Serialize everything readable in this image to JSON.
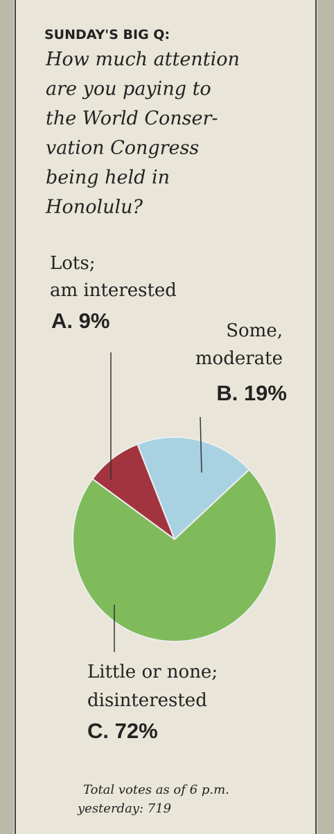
{
  "chart_data": {
    "type": "pie",
    "title": "SUNDAY'S BIG Q:",
    "subtitle": [
      "How much attention",
      "are you paying to",
      "the World Conser-",
      "vation Congress",
      "being held in",
      "Honolulu?"
    ],
    "categories": [
      [
        "Lots;",
        "am interested"
      ],
      [
        "Some,",
        "moderate"
      ],
      [
        "Little or none;",
        "disinterested"
      ]
    ],
    "values": [
      9,
      19,
      72
    ],
    "value_labels": [
      "A. 9%",
      "B. 19%",
      "C. 72%"
    ],
    "colors": [
      "#a2343f",
      "#a8d2e2",
      "#7fbb5b"
    ],
    "note": [
      "Total votes as of 6 p.m.",
      "yesterday: 719"
    ]
  }
}
